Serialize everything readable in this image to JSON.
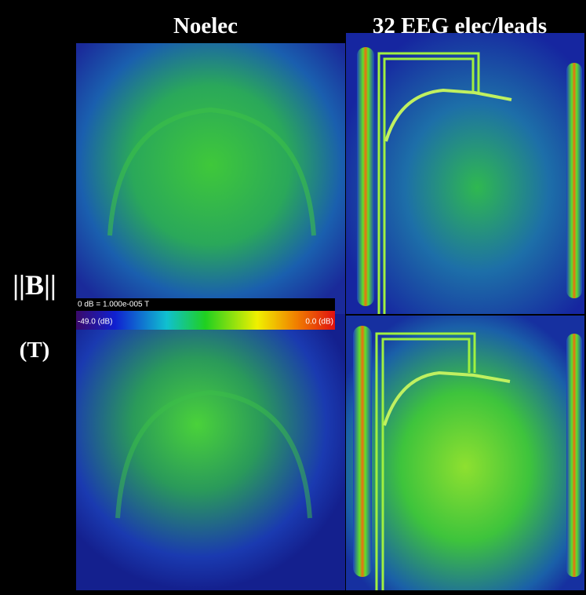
{
  "header": {
    "columns": [
      "Noelec",
      "32 EEG elec/leads"
    ]
  },
  "row_label": {
    "quantity": "||B||",
    "unit": "(T)"
  },
  "colorbar": {
    "reference": "0 dB = 1.000e-005 T",
    "min_label": "-49.0 (dB)",
    "max_label": "0.0 (dB)"
  }
}
